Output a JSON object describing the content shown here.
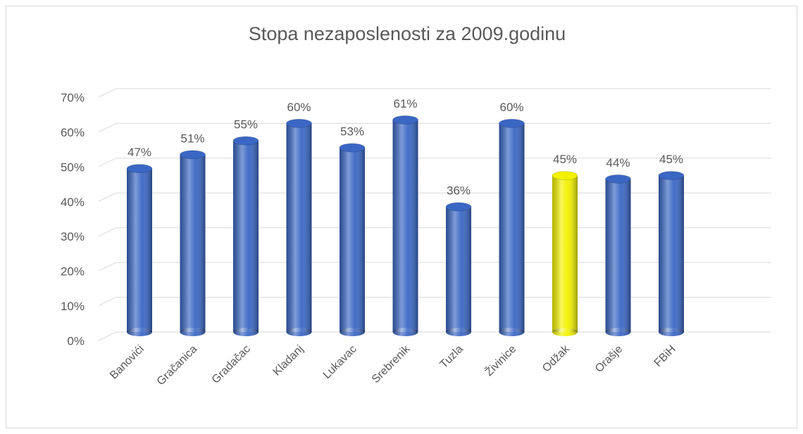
{
  "chart_data": {
    "type": "bar",
    "title": "Stopa nezaposlenosti za 2009.godinu",
    "categories": [
      "Banovići",
      "Gračanica",
      "Gradačac",
      "Kladanj",
      "Lukavac",
      "Srebrenik",
      "Tuzla",
      "Živinice",
      "Odžak",
      "Orašje",
      "FBiH"
    ],
    "values": [
      47,
      51,
      55,
      60,
      53,
      61,
      36,
      60,
      45,
      44,
      45
    ],
    "value_labels": [
      "47%",
      "51%",
      "55%",
      "60%",
      "53%",
      "61%",
      "36%",
      "60%",
      "45%",
      "44%",
      "45%"
    ],
    "colors": [
      "#3a67c4",
      "#3a67c4",
      "#3a67c4",
      "#3a67c4",
      "#3a67c4",
      "#3a67c4",
      "#3a67c4",
      "#3a67c4",
      "#f2f200",
      "#3a67c4",
      "#3a67c4"
    ],
    "ylim": [
      0,
      70
    ],
    "yticks": [
      {
        "value": 0,
        "label": "0%"
      },
      {
        "value": 10,
        "label": "10%"
      },
      {
        "value": 20,
        "label": "20%"
      },
      {
        "value": 30,
        "label": "30%"
      },
      {
        "value": 40,
        "label": "40%"
      },
      {
        "value": 50,
        "label": "50%"
      },
      {
        "value": 60,
        "label": "60%"
      },
      {
        "value": 70,
        "label": "70%"
      }
    ],
    "grid": true
  }
}
